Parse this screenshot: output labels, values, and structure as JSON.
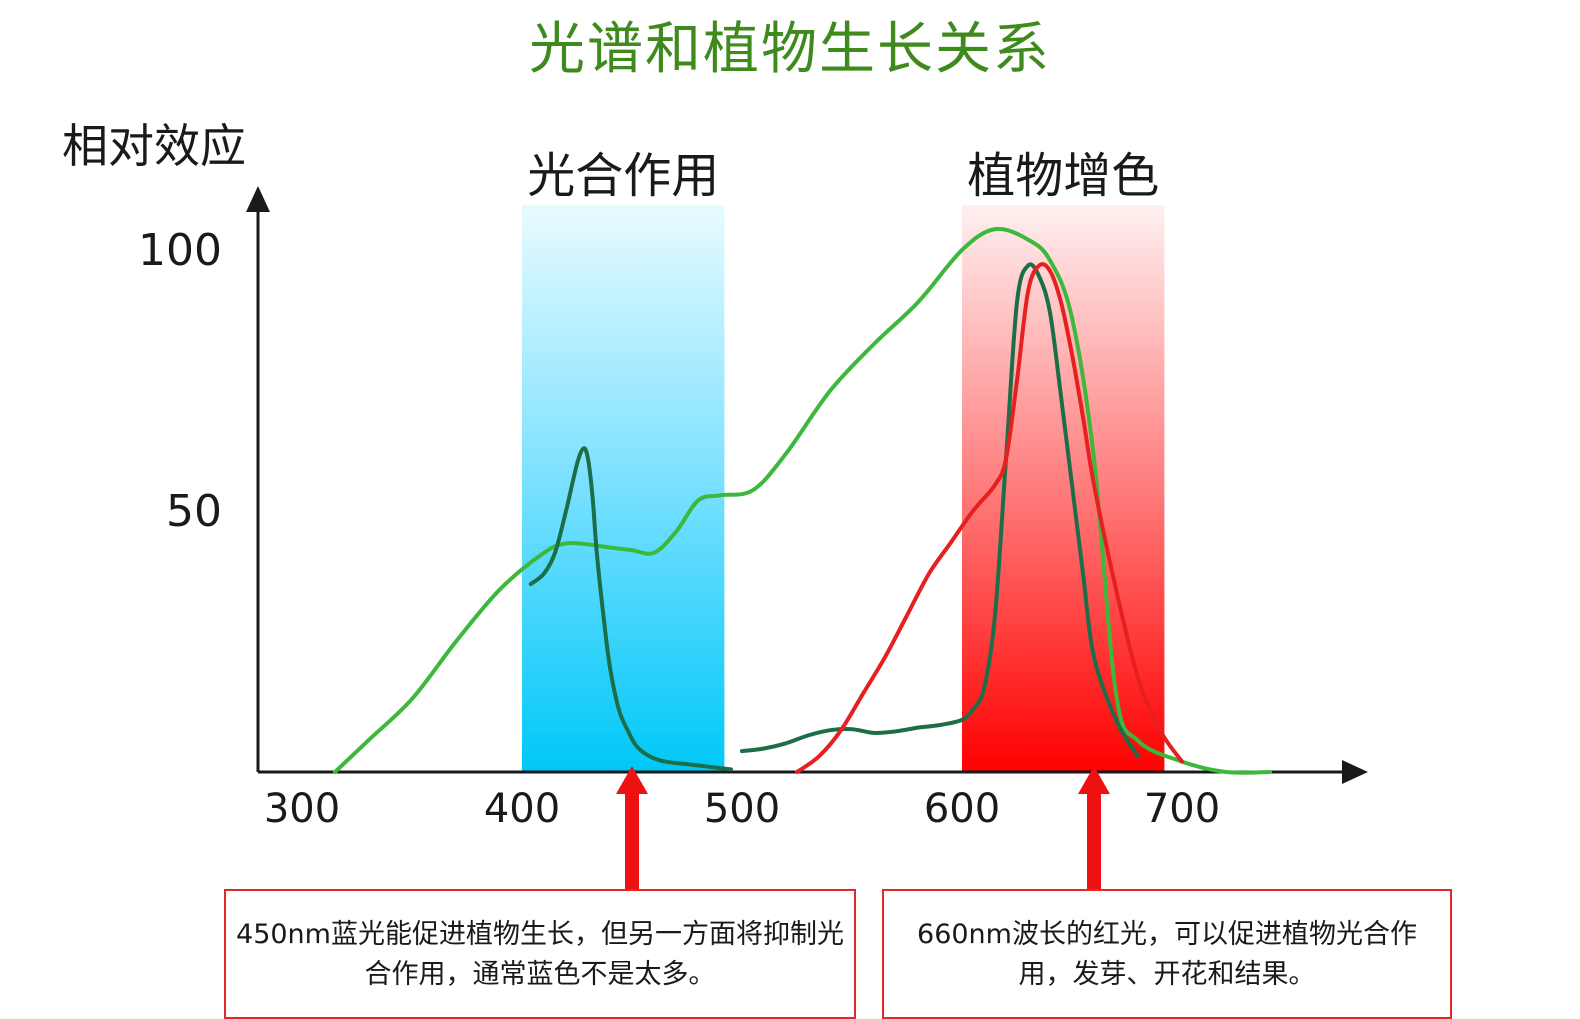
{
  "chart_data": {
    "type": "line",
    "title": "光谱和植物生长关系",
    "ylabel": "相对效应",
    "xlabel": "",
    "x_ticks": [
      300,
      400,
      500,
      600,
      700
    ],
    "y_ticks": [
      50,
      100
    ],
    "xlim": [
      280,
      790
    ],
    "ylim": [
      0,
      120
    ],
    "bands": [
      {
        "label": "光合作用",
        "range": [
          400,
          492
        ],
        "color": "#00c8f8"
      },
      {
        "label": "植物增色",
        "range": [
          600,
          692
        ],
        "color": "#ff0000"
      }
    ],
    "series": [
      {
        "color": "#3cb83c",
        "x": [
          315,
          330,
          350,
          370,
          390,
          410,
          420,
          430,
          440,
          450,
          460,
          470,
          480,
          490,
          505,
          520,
          540,
          560,
          580,
          600,
          615,
          630,
          640,
          650,
          660,
          670,
          680,
          700,
          720,
          740
        ],
        "y": [
          0,
          6,
          14,
          25,
          35,
          42,
          43.8,
          43.6,
          43,
          42.5,
          42,
          46,
          52,
          53,
          54,
          61,
          73,
          82,
          90,
          100,
          104,
          102,
          98,
          87,
          60,
          15,
          6,
          2,
          0,
          0
        ]
      },
      {
        "color": "#1c6e48",
        "x": [
          404,
          410,
          415,
          420,
          425,
          428,
          430,
          432,
          434,
          437,
          440,
          444,
          448,
          452,
          458,
          465,
          475,
          485,
          495
        ],
        "y": [
          36,
          38,
          42,
          50,
          59,
          62,
          60,
          53,
          42,
          30,
          20,
          12,
          8,
          5,
          3,
          2,
          1.5,
          1,
          0.5
        ],
        "note": "blue-peak-series"
      },
      {
        "color": "#1c6e48",
        "x": [
          500,
          510,
          520,
          530,
          540,
          550,
          560,
          570,
          580,
          590,
          600,
          605,
          610,
          615,
          620,
          625,
          630,
          635,
          640,
          645,
          650,
          655,
          660,
          670,
          680
        ],
        "y": [
          4,
          4.5,
          5.5,
          7,
          8,
          8.2,
          7.5,
          7.8,
          8.5,
          9,
          10,
          12,
          16,
          30,
          60,
          90,
          97,
          95,
          88,
          72,
          55,
          38,
          22,
          10,
          3
        ]
      },
      {
        "color": "#e62020",
        "x": [
          525,
          535,
          545,
          555,
          565,
          575,
          585,
          595,
          605,
          615,
          620,
          625,
          630,
          635,
          640,
          645,
          650,
          655,
          660,
          670,
          680,
          690,
          700
        ],
        "y": [
          0,
          3,
          8,
          15,
          22,
          30,
          38,
          44,
          50,
          55,
          60,
          75,
          92,
          97,
          96,
          90,
          80,
          68,
          55,
          35,
          18,
          8,
          2
        ]
      }
    ],
    "annotations": [
      {
        "x": 450,
        "text": "450nm蓝光能促进植物生长，但另一方面将抑制光合作用，通常蓝色不是太多。"
      },
      {
        "x": 660,
        "text": "660nm波长的红光，可以促进植物光合作用，发芽、开花和结果。"
      }
    ]
  }
}
